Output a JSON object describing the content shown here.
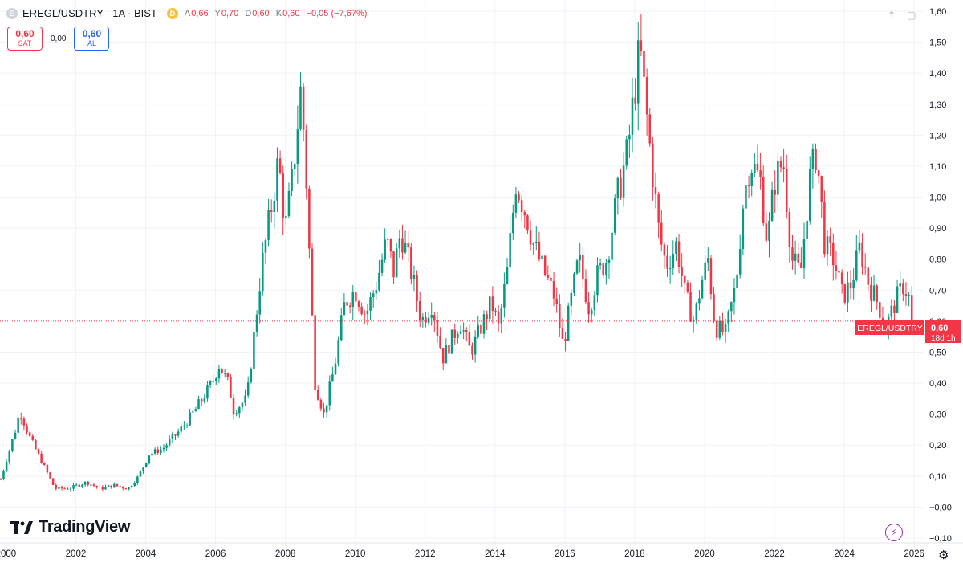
{
  "header": {
    "symbol_icon": "E",
    "title": "EREGL/USDTRY · 1A · BIST",
    "delay_badge": "D",
    "ohlc": [
      {
        "key": "A",
        "value": "0,66"
      },
      {
        "key": "Y",
        "value": "0,70"
      },
      {
        "key": "D",
        "value": "0,60"
      },
      {
        "key": "K",
        "value": "0,60"
      }
    ],
    "change": "−0,05 (−7,67%)"
  },
  "trade_panel": {
    "sell_price": "0,60",
    "sell_label": "SAT",
    "spread": "0,00",
    "buy_price": "0,60",
    "buy_label": "AL"
  },
  "price_label": {
    "symbol": "EREGL/USDTRY",
    "price": "0,60",
    "countdown": "18d 1h"
  },
  "branding": {
    "logo_text": "TradingView"
  },
  "icons": {
    "top": [
      "arrow-up-icon",
      "maximize-icon"
    ],
    "bottom": [
      "bolt-icon",
      "settings-icon"
    ]
  },
  "colors": {
    "up": "#089981",
    "down": "#f23645",
    "grid": "#f0f3fa",
    "text": "#131722",
    "axis_text": "#131722"
  },
  "chart_data": {
    "type": "candlestick",
    "title": "EREGL/USDTRY · 1A · BIST",
    "interval": "1 month",
    "last_price": 0.6,
    "y_axis": {
      "range": [
        -0.1,
        1.6
      ],
      "ticks": [
        1.6,
        1.5,
        1.4,
        1.3,
        1.2,
        1.1,
        1.0,
        0.9,
        0.8,
        0.7,
        0.6,
        0.5,
        0.4,
        0.3,
        0.2,
        0.1,
        0.0,
        -0.1
      ],
      "tick_labels": [
        "1,60",
        "1,50",
        "1,40",
        "1,30",
        "1,20",
        "1,10",
        "1,00",
        "0,90",
        "0,80",
        "0,70",
        "0,60",
        "0,50",
        "0,40",
        "0,30",
        "0,20",
        "0,10",
        "−0,00",
        "−0,10"
      ]
    },
    "x_axis": {
      "range": [
        1999.83,
        2026.25
      ],
      "ticks": [
        2000,
        2002,
        2004,
        2006,
        2008,
        2010,
        2012,
        2014,
        2016,
        2018,
        2020,
        2022,
        2024,
        2026
      ],
      "tick_labels": [
        "2000",
        "2002",
        "2004",
        "2006",
        "2008",
        "2010",
        "2012",
        "2014",
        "2016",
        "2018",
        "2020",
        "2022",
        "2024",
        "2026"
      ]
    },
    "key_points": [
      [
        1999.85,
        0.09
      ],
      [
        2000.3,
        0.26
      ],
      [
        2000.4,
        0.31
      ],
      [
        2000.7,
        0.22
      ],
      [
        2001.1,
        0.13
      ],
      [
        2001.4,
        0.06
      ],
      [
        2001.8,
        0.06
      ],
      [
        2002.3,
        0.08
      ],
      [
        2002.7,
        0.06
      ],
      [
        2003.1,
        0.07
      ],
      [
        2003.5,
        0.06
      ],
      [
        2003.8,
        0.1
      ],
      [
        2004.1,
        0.17
      ],
      [
        2004.5,
        0.19
      ],
      [
        2005.0,
        0.25
      ],
      [
        2005.4,
        0.31
      ],
      [
        2005.9,
        0.4
      ],
      [
        2006.1,
        0.46
      ],
      [
        2006.4,
        0.39
      ],
      [
        2006.5,
        0.31
      ],
      [
        2006.9,
        0.35
      ],
      [
        2007.1,
        0.55
      ],
      [
        2007.3,
        0.76
      ],
      [
        2007.6,
        0.97
      ],
      [
        2007.8,
        1.12
      ],
      [
        2008.0,
        0.9
      ],
      [
        2008.2,
        1.06
      ],
      [
        2008.45,
        1.36
      ],
      [
        2008.6,
        1.05
      ],
      [
        2008.75,
        0.65
      ],
      [
        2008.85,
        0.4
      ],
      [
        2009.1,
        0.3
      ],
      [
        2009.4,
        0.45
      ],
      [
        2009.7,
        0.66
      ],
      [
        2010.0,
        0.7
      ],
      [
        2010.3,
        0.62
      ],
      [
        2010.6,
        0.72
      ],
      [
        2010.9,
        0.86
      ],
      [
        2011.1,
        0.76
      ],
      [
        2011.3,
        0.89
      ],
      [
        2011.6,
        0.76
      ],
      [
        2011.9,
        0.6
      ],
      [
        2012.2,
        0.66
      ],
      [
        2012.5,
        0.48
      ],
      [
        2012.8,
        0.55
      ],
      [
        2013.0,
        0.6
      ],
      [
        2013.3,
        0.5
      ],
      [
        2013.6,
        0.58
      ],
      [
        2013.9,
        0.66
      ],
      [
        2014.1,
        0.58
      ],
      [
        2014.35,
        0.76
      ],
      [
        2014.6,
        1.05
      ],
      [
        2014.9,
        0.94
      ],
      [
        2015.1,
        0.85
      ],
      [
        2015.4,
        0.76
      ],
      [
        2015.7,
        0.68
      ],
      [
        2015.95,
        0.52
      ],
      [
        2016.2,
        0.68
      ],
      [
        2016.4,
        0.8
      ],
      [
        2016.7,
        0.64
      ],
      [
        2016.9,
        0.74
      ],
      [
        2017.2,
        0.8
      ],
      [
        2017.5,
        1.0
      ],
      [
        2017.8,
        1.15
      ],
      [
        2018.0,
        1.35
      ],
      [
        2018.15,
        1.48
      ],
      [
        2018.4,
        1.2
      ],
      [
        2018.7,
        0.88
      ],
      [
        2018.9,
        0.78
      ],
      [
        2019.2,
        0.85
      ],
      [
        2019.45,
        0.68
      ],
      [
        2019.7,
        0.6
      ],
      [
        2019.9,
        0.72
      ],
      [
        2020.1,
        0.8
      ],
      [
        2020.3,
        0.58
      ],
      [
        2020.6,
        0.56
      ],
      [
        2020.9,
        0.72
      ],
      [
        2021.1,
        0.98
      ],
      [
        2021.3,
        1.12
      ],
      [
        2021.6,
        1.05
      ],
      [
        2021.8,
        0.85
      ],
      [
        2022.0,
        1.05
      ],
      [
        2022.25,
        1.12
      ],
      [
        2022.5,
        0.8
      ],
      [
        2022.75,
        0.75
      ],
      [
        2023.0,
        1.05
      ],
      [
        2023.2,
        1.15
      ],
      [
        2023.45,
        0.84
      ],
      [
        2023.7,
        0.8
      ],
      [
        2023.95,
        0.68
      ],
      [
        2024.2,
        0.72
      ],
      [
        2024.45,
        0.84
      ],
      [
        2024.7,
        0.72
      ],
      [
        2024.95,
        0.66
      ],
      [
        2025.2,
        0.58
      ],
      [
        2025.45,
        0.66
      ],
      [
        2025.7,
        0.72
      ],
      [
        2025.9,
        0.66
      ],
      [
        2026.0,
        0.6
      ]
    ]
  }
}
